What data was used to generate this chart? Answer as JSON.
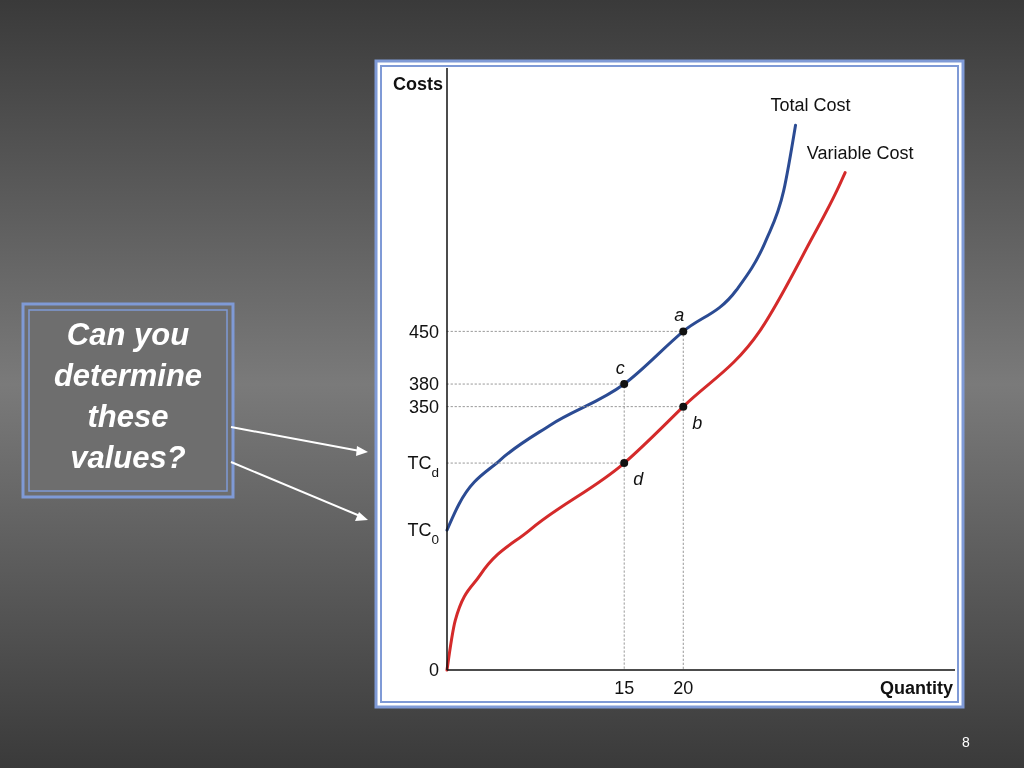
{
  "chart_data": {
    "type": "line",
    "xlabel": "Quantity",
    "ylabel": "Costs",
    "xlim": [
      0,
      43
    ],
    "ylim": [
      0,
      800
    ],
    "xticks": [
      15,
      20
    ],
    "yticks": [
      0,
      350,
      380,
      450
    ],
    "line_style": "solid",
    "grid": false,
    "tick_labels": "xy",
    "series": [
      {
        "name": "Total Cost",
        "color": "#2b4b93",
        "x": [
          0,
          1,
          4.5,
          8.7,
          15,
          20,
          24.5,
          27,
          28.5,
          29.5
        ],
        "values": [
          186,
          220,
          279,
          325,
          380,
          450,
          505,
          571,
          637,
          724
        ]
      },
      {
        "name": "Variable Cost",
        "color": "#d42a2a",
        "x": [
          0,
          0.7,
          2.8,
          7,
          15,
          20,
          26.5,
          30.8,
          33,
          33.7
        ],
        "values": [
          0,
          66,
          126,
          186,
          275,
          350,
          451,
          571,
          637,
          661
        ]
      },
      {
        "type": "line",
        "line_style": "dotted",
        "color": "#999999",
        "x": [
          0,
          20,
          20
        ],
        "values": [
          450,
          450,
          0
        ]
      },
      {
        "type": "line",
        "line_style": "dotted",
        "color": "#999999",
        "x": [
          0,
          15,
          15
        ],
        "values": [
          380,
          380,
          0
        ]
      },
      {
        "type": "line",
        "line_style": "dotted",
        "color": "#999999",
        "x": [
          0,
          20
        ],
        "values": [
          350,
          350
        ]
      },
      {
        "type": "line",
        "line_style": "dotted",
        "color": "#999999",
        "x": [
          0,
          15
        ],
        "values": [
          275,
          275
        ]
      },
      {
        "type": "scatter",
        "marker": "circle",
        "color": "#111111",
        "x": [
          20,
          20,
          15,
          15
        ],
        "values": [
          450,
          350,
          380,
          275
        ],
        "value_labels": [
          "a",
          "b",
          "c",
          "d"
        ]
      }
    ],
    "annotations": [
      {
        "text": "TC$_{0}$",
        "x": 0,
        "y": 186
      },
      {
        "text": "TC$_{d}$",
        "x": 0,
        "y": 275
      },
      "Can you determine these values?",
      "8"
    ]
  }
}
